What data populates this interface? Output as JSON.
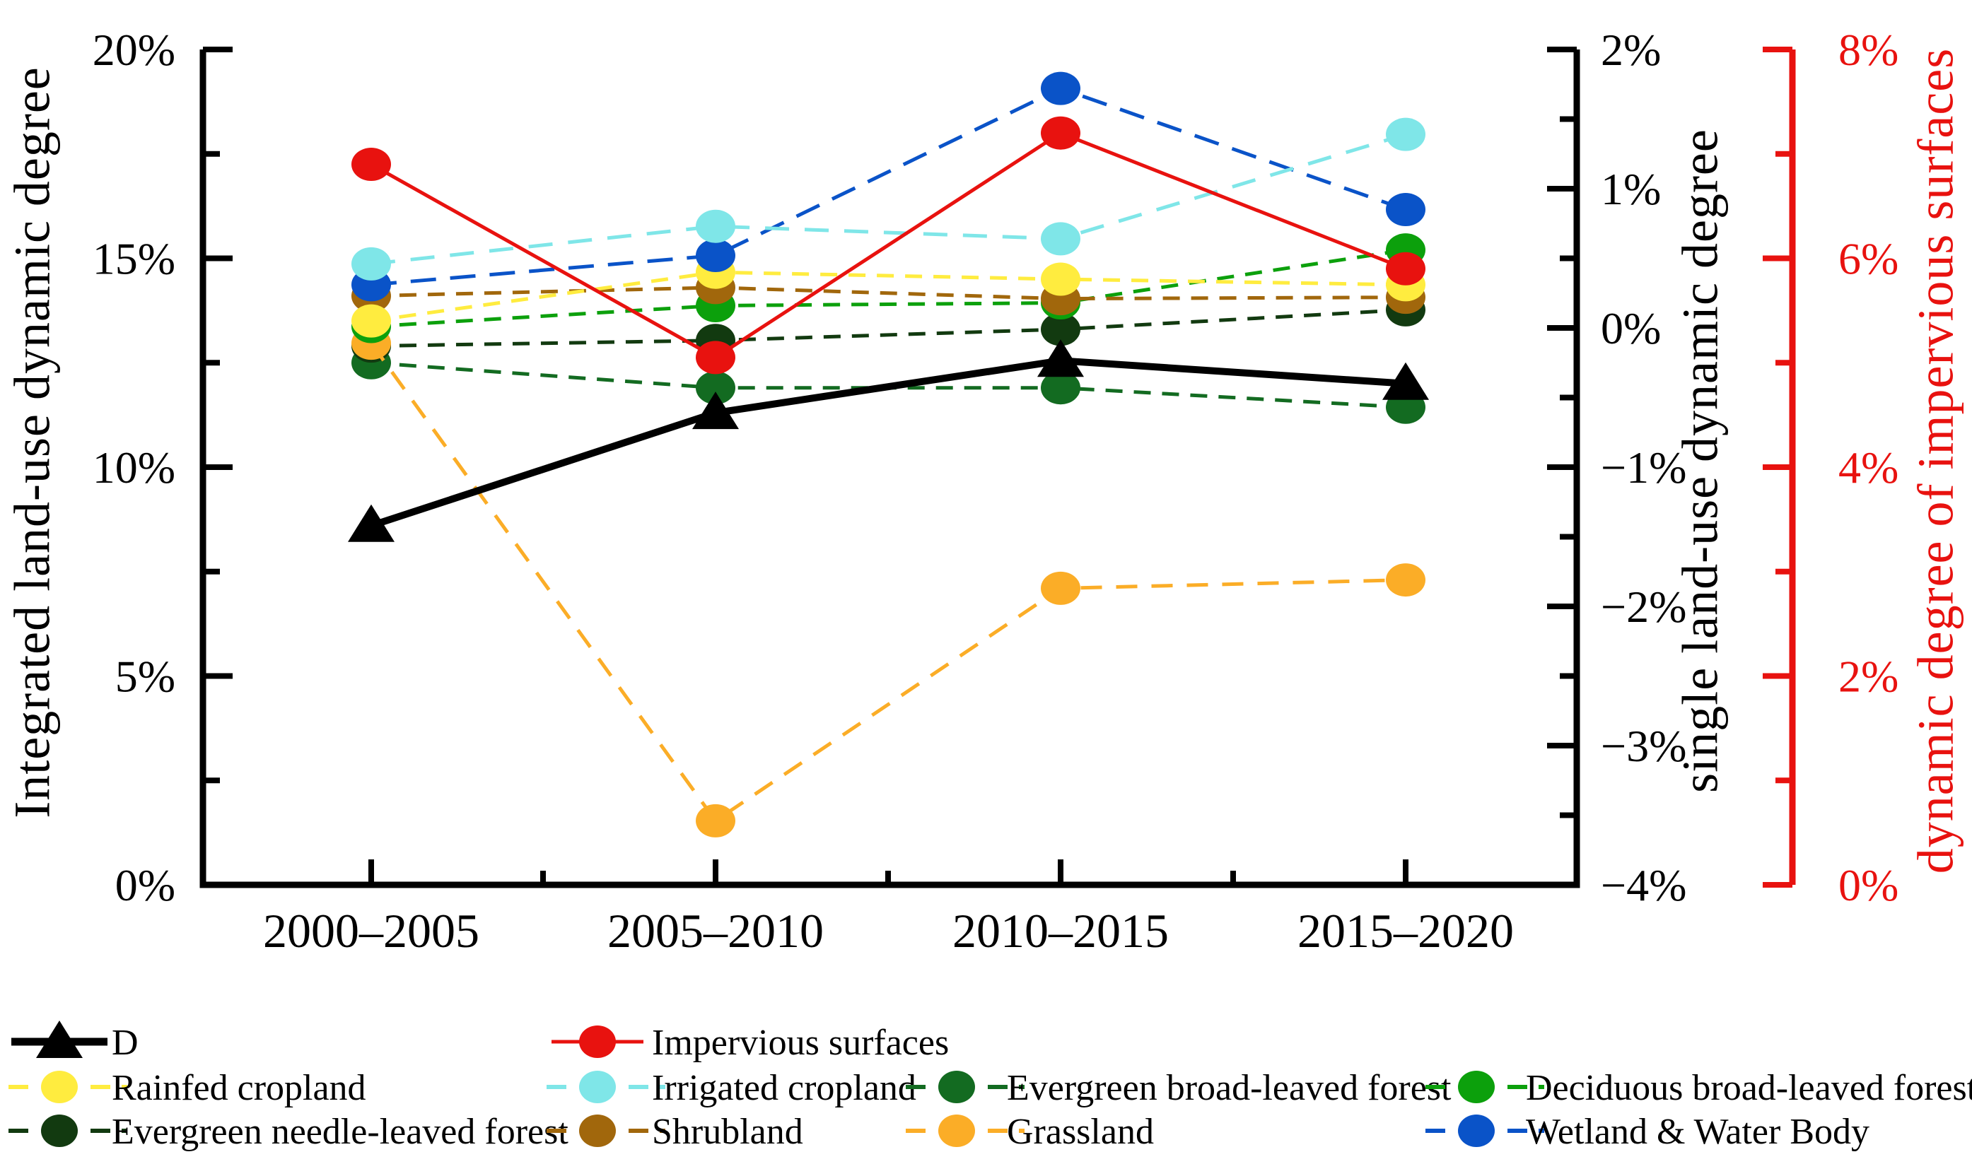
{
  "figure": {
    "background": "#ffffff"
  },
  "chart_data": {
    "type": "line",
    "title": "",
    "grid": false,
    "x_categories": [
      "2000–2005",
      "2005–2010",
      "2010–2015",
      "2015–2020"
    ],
    "axes": {
      "left": {
        "title": "Integrated land-use dynamic degree",
        "color": "#000000",
        "range": [
          0,
          20
        ],
        "unit": "%",
        "tick_values": [
          0,
          5,
          10,
          15,
          20
        ],
        "tick_labels": [
          "0%",
          "5%",
          "10%",
          "15%",
          "20%"
        ],
        "minor_tick_values": [
          2.5,
          7.5,
          12.5,
          17.5
        ]
      },
      "right_inner": {
        "title": "single land-use dynamic degree",
        "color": "#000000",
        "range": [
          -4,
          2
        ],
        "unit": "%",
        "tick_values": [
          2,
          1,
          0,
          -1,
          -2,
          -3,
          -4
        ],
        "tick_labels": [
          "2%",
          "1%",
          "0%",
          "−1%",
          "−2%",
          "−3%",
          "−4%"
        ],
        "minor_tick_values": [
          1.5,
          0.5,
          -0.5,
          -1.5,
          -2.5,
          -3.5
        ]
      },
      "right_outer": {
        "title": "dynamic degree of impervious surfaces",
        "color": "#e8120f",
        "range": [
          0,
          8
        ],
        "unit": "%",
        "tick_values": [
          0,
          2,
          4,
          6,
          8
        ],
        "tick_labels": [
          "0%",
          "2%",
          "4%",
          "6%",
          "8%"
        ],
        "minor_tick_values": [
          1,
          3,
          5,
          7
        ]
      }
    },
    "series": [
      {
        "name": "D",
        "axis": "left",
        "color": "#000000",
        "marker": "triangle",
        "line_style": "solid",
        "line_width": 10,
        "values": [
          8.6,
          11.3,
          12.55,
          12.0
        ]
      },
      {
        "name": "Impervious surfaces",
        "axis": "right_outer",
        "color": "#e8120f",
        "marker": "circle",
        "line_style": "solid",
        "line_width": 5,
        "values": [
          6.9,
          5.05,
          7.2,
          5.9
        ]
      },
      {
        "name": "Rainfed cropland",
        "axis": "right_inner",
        "color": "#ffec3f",
        "marker": "circle",
        "line_style": "dashed",
        "line_width": 5,
        "values": [
          0.05,
          0.4,
          0.35,
          0.31
        ]
      },
      {
        "name": "Irrigated cropland",
        "axis": "right_inner",
        "color": "#7fe6e8",
        "marker": "circle",
        "line_style": "dashed",
        "line_width": 5,
        "values": [
          0.46,
          0.73,
          0.64,
          1.39
        ]
      },
      {
        "name": "Evergreen broad-leaved forest",
        "axis": "right_inner",
        "color": "#136b21",
        "marker": "circle",
        "line_style": "dashed",
        "line_width": 5,
        "values": [
          -0.25,
          -0.43,
          -0.43,
          -0.57
        ]
      },
      {
        "name": "Deciduous broad-leaved forest",
        "axis": "right_inner",
        "color": "#0ca00c",
        "marker": "circle",
        "line_style": "dashed",
        "line_width": 5,
        "values": [
          0.01,
          0.16,
          0.18,
          0.56
        ]
      },
      {
        "name": "Evergreen needle-leaved forest",
        "axis": "right_inner",
        "color": "#123a10",
        "marker": "circle",
        "line_style": "dashed",
        "line_width": 5,
        "values": [
          -0.13,
          -0.09,
          -0.01,
          0.13
        ]
      },
      {
        "name": "Shrubland",
        "axis": "right_inner",
        "color": "#a1670c",
        "marker": "circle",
        "line_style": "dashed",
        "line_width": 5,
        "values": [
          0.23,
          0.29,
          0.21,
          0.22
        ]
      },
      {
        "name": "Grassland",
        "axis": "right_inner",
        "color": "#fbad27",
        "marker": "circle",
        "line_style": "dashed",
        "line_width": 5,
        "values": [
          -0.11,
          -3.54,
          -1.87,
          -1.81
        ]
      },
      {
        "name": "Wetland & Water Body",
        "axis": "right_inner",
        "color": "#0a53c8",
        "marker": "circle",
        "line_style": "dashed",
        "line_width": 5,
        "values": [
          0.31,
          0.52,
          1.72,
          0.85
        ]
      }
    ],
    "legend": {
      "position": "bottom-left",
      "rows": [
        [
          {
            "label": "D",
            "col": 0
          },
          {
            "label": "Impervious surfaces",
            "col": 1
          }
        ],
        [
          {
            "label": "Rainfed cropland",
            "col": 0
          },
          {
            "label": "Irrigated cropland",
            "col": 1
          },
          {
            "label": "Evergreen broad-leaved forest",
            "col": 2
          },
          {
            "label": "Deciduous broad-leaved forest",
            "col": 3
          }
        ],
        [
          {
            "label": "Evergreen needle-leaved forest",
            "col": 0
          },
          {
            "label": "Shrubland",
            "col": 1
          },
          {
            "label": "Grassland",
            "col": 2
          },
          {
            "label": "Wetland & Water Body",
            "col": 3
          }
        ]
      ]
    }
  }
}
